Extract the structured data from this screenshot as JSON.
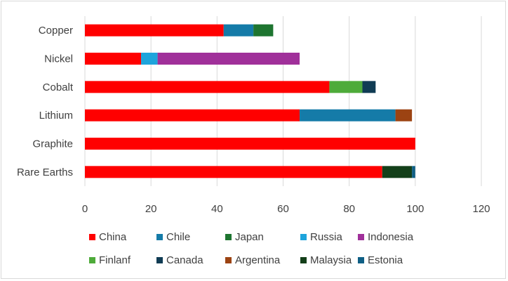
{
  "chart_data": {
    "type": "bar",
    "orientation": "horizontal",
    "stacked": true,
    "title": "",
    "xlabel": "",
    "ylabel": "",
    "xlim": [
      0,
      120
    ],
    "xticks": [
      0,
      20,
      40,
      60,
      80,
      100,
      120
    ],
    "grid": "vertical",
    "legend_position": "bottom",
    "categories": [
      "Copper",
      "Nickel",
      "Cobalt",
      "Lithium",
      "Graphite",
      "Rare Earths"
    ],
    "series": [
      {
        "name": "China",
        "color": "#ff0000",
        "values": [
          42,
          17,
          74,
          65,
          100,
          90
        ]
      },
      {
        "name": "Chile",
        "color": "#157ba8",
        "values": [
          9,
          0,
          0,
          29,
          0,
          0
        ]
      },
      {
        "name": "Japan",
        "color": "#1e7530",
        "values": [
          6,
          0,
          0,
          0,
          0,
          0
        ]
      },
      {
        "name": "Russia",
        "color": "#1ea4dc",
        "values": [
          0,
          5,
          0,
          0,
          0,
          0
        ]
      },
      {
        "name": "Indonesia",
        "color": "#a0309a",
        "values": [
          0,
          43,
          0,
          0,
          0,
          0
        ]
      },
      {
        "name": "Finlanf",
        "color": "#4eab3a",
        "values": [
          0,
          0,
          10,
          0,
          0,
          0
        ]
      },
      {
        "name": "Canada",
        "color": "#103c54",
        "values": [
          0,
          0,
          4,
          0,
          0,
          0
        ]
      },
      {
        "name": "Argentina",
        "color": "#9c4312",
        "values": [
          0,
          0,
          0,
          5,
          0,
          0
        ]
      },
      {
        "name": "Malaysia",
        "color": "#133f19",
        "values": [
          0,
          0,
          0,
          0,
          0,
          9
        ]
      },
      {
        "name": "Estonia",
        "color": "#0f5f85",
        "values": [
          0,
          0,
          0,
          0,
          0,
          1
        ]
      }
    ]
  }
}
